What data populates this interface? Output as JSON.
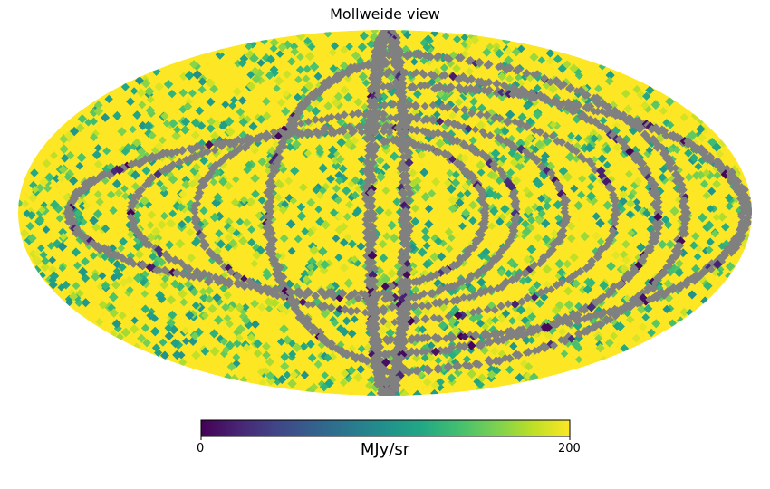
{
  "chart_data": {
    "type": "heatmap",
    "projection": "mollweide",
    "title": "Mollweide view",
    "colormap": "viridis",
    "colorbar": {
      "min": 0,
      "max": 200,
      "tick_labels": [
        "0",
        "200"
      ],
      "unit": "MJy/sr",
      "placement": "bottom"
    },
    "missing_color": "#808080",
    "saturated_color": "#fde725",
    "background_fill": "saturated (>= 200) over most of the sky",
    "features": [
      "scattered pixels with intermediate values (roughly 100-190) across the whole sky",
      "thin curved grey (missing-data) stripes along scan rings",
      "a few dark purple (near 0) pixels embedded in the stripes"
    ]
  }
}
